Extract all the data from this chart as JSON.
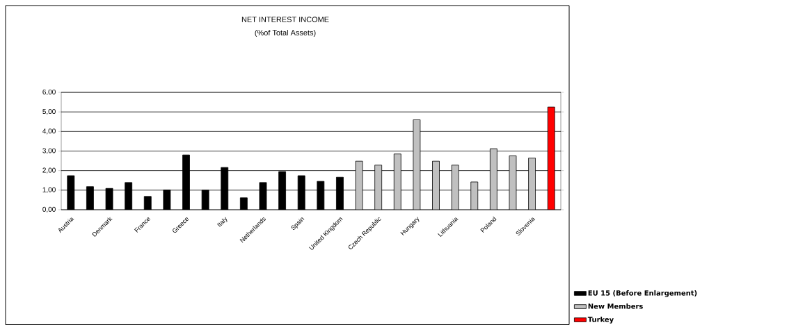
{
  "chart_data": {
    "type": "bar",
    "title": "NET INTEREST INCOME",
    "subtitle": "(%of Total Assets)",
    "categories": [
      "Austria",
      null,
      "Denmark",
      null,
      "France",
      null,
      "Greece",
      null,
      "Italy",
      null,
      "Netherlands",
      null,
      "Spain",
      null,
      "United Kingdom",
      null,
      "Czech Republic",
      null,
      "Hungary",
      null,
      "Lithuania",
      null,
      "Poland",
      null,
      "Slovenia",
      null
    ],
    "series": [
      {
        "name": "EU 15 (Before Enlargement)",
        "color": "#000000",
        "values": [
          1.74,
          1.18,
          1.09,
          1.39,
          0.68,
          1.01,
          2.8,
          1.0,
          2.16,
          0.61,
          1.39,
          1.95,
          1.74,
          1.45,
          1.66,
          null,
          null,
          null,
          null,
          null,
          null,
          null,
          null,
          null,
          null,
          null
        ]
      },
      {
        "name": "New Members",
        "color": "#c0c0c0",
        "values": [
          null,
          null,
          null,
          null,
          null,
          null,
          null,
          null,
          null,
          null,
          null,
          null,
          null,
          null,
          null,
          2.48,
          2.28,
          2.85,
          4.6,
          2.48,
          2.28,
          1.42,
          3.12,
          2.76,
          2.64,
          null
        ]
      },
      {
        "name": "Turkey",
        "color": "#ff0000",
        "values": [
          null,
          null,
          null,
          null,
          null,
          null,
          null,
          null,
          null,
          null,
          null,
          null,
          null,
          null,
          null,
          null,
          null,
          null,
          null,
          null,
          null,
          null,
          null,
          null,
          null,
          5.25
        ]
      }
    ],
    "ylim": [
      0,
      6
    ],
    "yticks": [
      {
        "value": 0,
        "label": "0,00"
      },
      {
        "value": 1,
        "label": "1,00"
      },
      {
        "value": 2,
        "label": "2,00"
      },
      {
        "value": 3,
        "label": "3,00"
      },
      {
        "value": 4,
        "label": "4,00"
      },
      {
        "value": 5,
        "label": "5,00"
      },
      {
        "value": 6,
        "label": "6,00"
      }
    ],
    "grid": "y",
    "legend": "bottom right"
  }
}
